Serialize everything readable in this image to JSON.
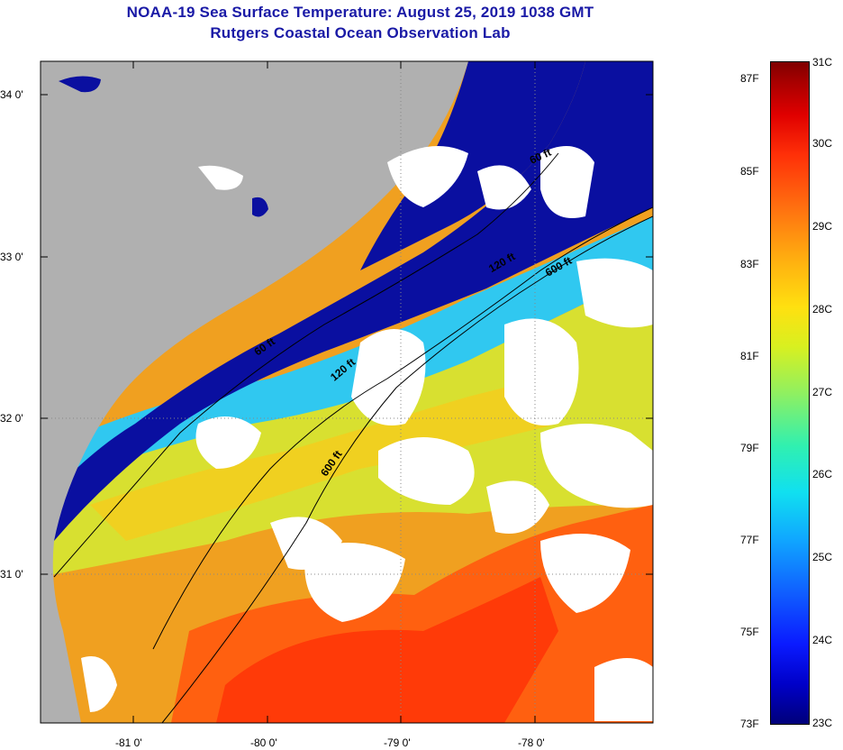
{
  "title": "NOAA-19 Sea Surface Temperature:  August 25, 2019 1038 GMT",
  "subtitle": "Rutgers Coastal Ocean Observation Lab",
  "lat_labels": [
    "34 0'",
    "33 0'",
    "32 0'",
    "31 0'"
  ],
  "lon_labels": [
    "-81 0'",
    "-80 0'",
    "-79 0'",
    "-78 0'"
  ],
  "isobaths": [
    "60 ft",
    "120 ft",
    "600 ft"
  ],
  "colorbar": {
    "fahrenheit": [
      "87F",
      "85F",
      "83F",
      "81F",
      "79F",
      "77F",
      "75F",
      "73F"
    ],
    "celsius": [
      "31C",
      "30C",
      "29C",
      "28C",
      "27C",
      "26C",
      "25C",
      "24C",
      "23C"
    ],
    "range_c": [
      23,
      31
    ],
    "colors": [
      "#00007a",
      "#0000c8",
      "#1060ff",
      "#10e0f0",
      "#90f060",
      "#ffe010",
      "#ff7010",
      "#e00000",
      "#800000"
    ]
  },
  "colors": {
    "land": "#b0b0b0",
    "cloud": "#ffffff",
    "title": "#1a1aa6"
  }
}
